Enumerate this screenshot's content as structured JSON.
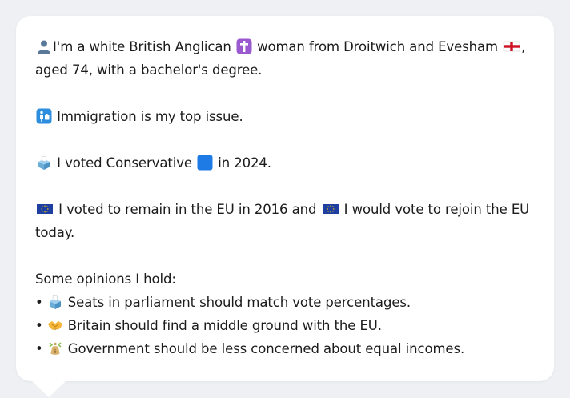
{
  "profile": {
    "line1_a": "I'm a white British Anglican",
    "line1_b": "woman from Droitwich and Evesham",
    "line1_c": ", aged 74, with a bachelor's degree.",
    "issue": "Immigration is my top issue.",
    "vote_a": "I voted Conservative",
    "vote_b": "in 2024.",
    "eu_a": "I voted to remain in the EU in 2016 and",
    "eu_b": "I would vote to rejoin the EU today."
  },
  "opinions": {
    "heading": "Some opinions I hold:",
    "items": [
      {
        "bullet": "•",
        "icon": "ballot-box-icon",
        "text": "Seats in parliament should match vote percentages."
      },
      {
        "bullet": "•",
        "icon": "handshake-icon",
        "text": "Britain should find a middle ground with the EU."
      },
      {
        "bullet": "•",
        "icon": "money-bag-icon",
        "text": "Government should be less concerned about equal incomes."
      }
    ]
  },
  "icons": {
    "person": "bust-silhouette-icon",
    "religion": "latin-cross-icon",
    "nation": "england-flag-icon",
    "issue": "immigration-icon",
    "ballot": "ballot-box-icon",
    "party": "blue-square-icon",
    "eu": "eu-flag-icon"
  },
  "colors": {
    "background": "#eef0f3",
    "card": "#ffffff",
    "text": "#1c1c1c",
    "conservative_blue": "#1e7be6",
    "cross_purple": "#9b59d0",
    "eu_blue": "#1f3fa0"
  }
}
